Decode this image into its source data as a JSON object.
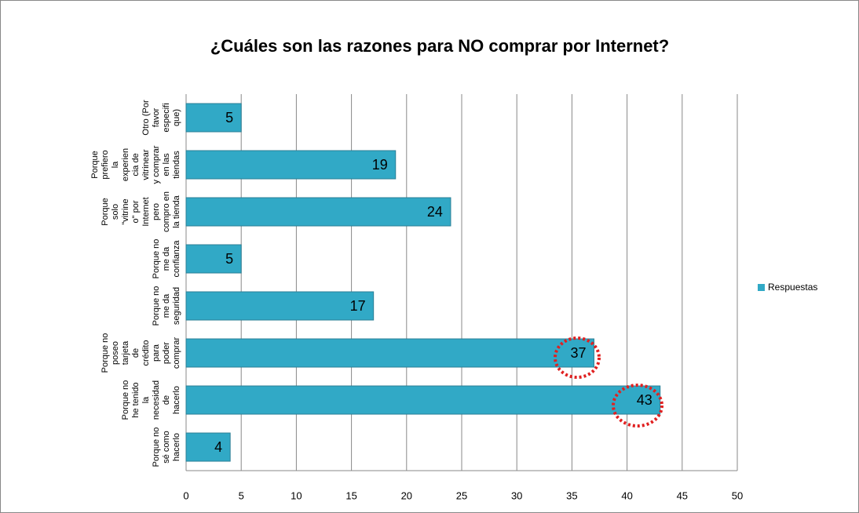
{
  "chart_data": {
    "type": "barh",
    "title": "¿Cuáles son las razones para NO comprar por Internet?",
    "categories": [
      "Porque no sé como hacerlo",
      "Porque no he tenido la necesidad de hacerlo",
      "Porque no poseo tarjeta de crédito para poder comprar",
      "Porque no me da seguridad",
      "Porque no me da confianza",
      "Porque solo \"vitrineo\" por Internet pero compro en la tienda",
      "Porque prefiero la experiencia de vitrinear y comprar en las tiendas",
      "Otro (Por favor especifique)"
    ],
    "series": [
      {
        "name": "Respuestas",
        "color": "#31a9c6",
        "values": [
          4,
          43,
          37,
          17,
          5,
          24,
          19,
          5
        ]
      }
    ],
    "xlim": [
      0,
      50
    ],
    "xticks": [
      0,
      5,
      10,
      15,
      20,
      25,
      30,
      35,
      40,
      45,
      50
    ],
    "grid": true,
    "legend": "right"
  }
}
